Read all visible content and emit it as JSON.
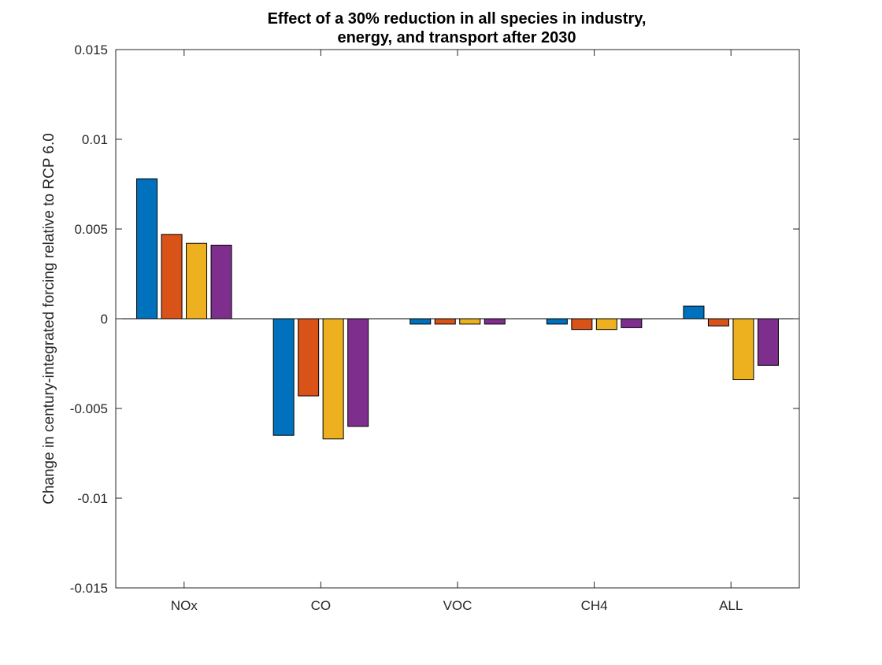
{
  "chart_data": {
    "type": "bar",
    "title_lines": [
      "Effect of a 30% reduction in all species in industry,",
      "energy, and transport after 2030"
    ],
    "xlabel": "",
    "ylabel": "Change in century-integrated forcing relative to RCP 6.0",
    "categories": [
      "NOx",
      "CO",
      "VOC",
      "CH4",
      "ALL"
    ],
    "ylim": [
      -0.015,
      0.015
    ],
    "yticks": [
      -0.015,
      -0.01,
      -0.005,
      0,
      0.005,
      0.01,
      0.015
    ],
    "ytick_labels": [
      "-0.015",
      "-0.01",
      "-0.005",
      "0",
      "0.005",
      "0.01",
      "0.015"
    ],
    "grid": false,
    "legend": "none",
    "series": [
      {
        "color": "#0072BD",
        "values": [
          0.0078,
          -0.0065,
          -0.0003,
          -0.0003,
          0.0007
        ]
      },
      {
        "color": "#D95319",
        "values": [
          0.0047,
          -0.0043,
          -0.0003,
          -0.0006,
          -0.0004
        ]
      },
      {
        "color": "#EDB120",
        "values": [
          0.0042,
          -0.0067,
          -0.0003,
          -0.0006,
          -0.0034
        ]
      },
      {
        "color": "#7E2F8E",
        "values": [
          0.0041,
          -0.006,
          -0.0003,
          -0.0005,
          -0.0026
        ]
      }
    ],
    "bar_edge_color": "#000000",
    "axis_color": "#262626"
  }
}
